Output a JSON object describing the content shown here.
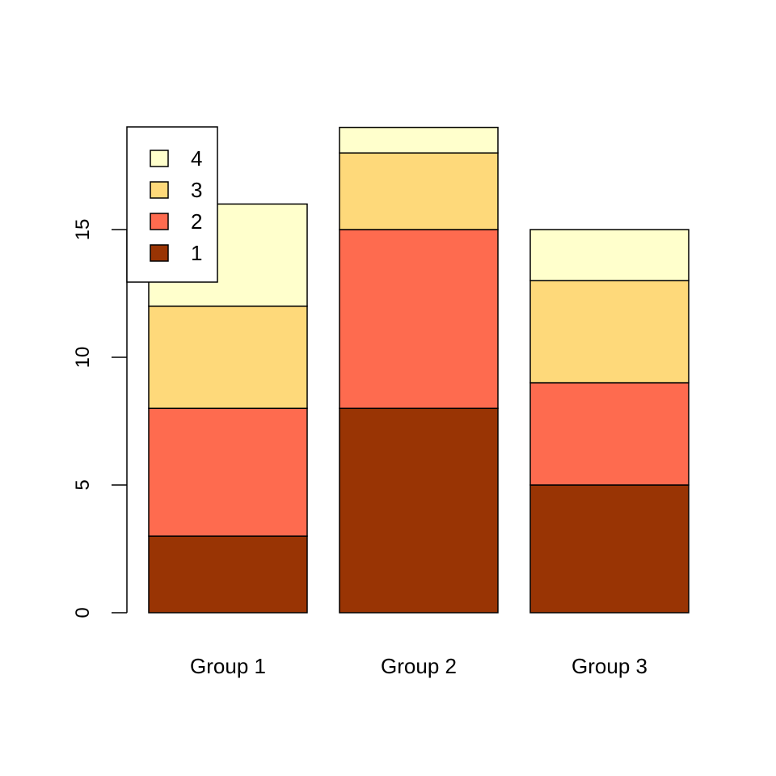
{
  "chart_data": {
    "type": "bar",
    "stacked": true,
    "categories": [
      "Group 1",
      "Group 2",
      "Group 3"
    ],
    "series": [
      {
        "name": "1",
        "values": [
          3,
          8,
          5
        ],
        "color": "#993404"
      },
      {
        "name": "2",
        "values": [
          5,
          7,
          4
        ],
        "color": "#FE6B4F"
      },
      {
        "name": "3",
        "values": [
          4,
          3,
          4
        ],
        "color": "#FED97A"
      },
      {
        "name": "4",
        "values": [
          4,
          1,
          2
        ],
        "color": "#FFFFCC"
      }
    ],
    "yticks": [
      "0",
      "5",
      "10",
      "15"
    ],
    "ylim": [
      0,
      19
    ],
    "title": "",
    "xlabel": "",
    "ylabel": "",
    "legend": {
      "placement": "top-left",
      "order": [
        "4",
        "3",
        "2",
        "1"
      ]
    },
    "grid": false
  }
}
